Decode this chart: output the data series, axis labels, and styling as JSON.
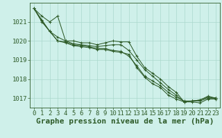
{
  "title": "Graphe pression niveau de la mer (hPa)",
  "xlabel_hours": [
    0,
    1,
    2,
    3,
    4,
    5,
    6,
    7,
    8,
    9,
    10,
    11,
    12,
    13,
    14,
    15,
    16,
    17,
    18,
    19,
    20,
    21,
    22,
    23
  ],
  "ylim": [
    1016.5,
    1022.0
  ],
  "yticks": [
    1017,
    1018,
    1019,
    1020,
    1021
  ],
  "background_color": "#cff0ea",
  "grid_color": "#aad8cc",
  "line_color": "#2d5a27",
  "series": [
    [
      1021.7,
      1021.3,
      1021.0,
      1021.3,
      1020.0,
      1020.0,
      1019.9,
      1019.9,
      1019.8,
      1019.9,
      1020.0,
      1019.95,
      1019.95,
      1019.2,
      1018.6,
      1018.3,
      1018.0,
      1017.6,
      1017.3,
      1016.8,
      1016.85,
      1016.85,
      1017.0,
      1017.0
    ],
    [
      1021.7,
      1021.1,
      1020.5,
      1020.2,
      1020.0,
      1019.85,
      1019.8,
      1019.75,
      1019.7,
      1019.75,
      1019.8,
      1019.8,
      1019.5,
      1019.0,
      1018.5,
      1018.15,
      1017.8,
      1017.45,
      1017.15,
      1016.8,
      1016.85,
      1016.9,
      1017.1,
      1017.0
    ],
    [
      1021.7,
      1021.05,
      1020.5,
      1020.0,
      1019.95,
      1019.8,
      1019.75,
      1019.7,
      1019.6,
      1019.6,
      1019.5,
      1019.45,
      1019.2,
      1018.7,
      1018.15,
      1017.9,
      1017.65,
      1017.3,
      1017.05,
      1016.85,
      1016.85,
      1016.9,
      1017.05,
      1017.0
    ],
    [
      1021.7,
      1021.0,
      1020.5,
      1020.0,
      1019.9,
      1019.75,
      1019.7,
      1019.65,
      1019.55,
      1019.55,
      1019.45,
      1019.4,
      1019.3,
      1018.6,
      1018.1,
      1017.75,
      1017.55,
      1017.15,
      1016.95,
      1016.8,
      1016.8,
      1016.75,
      1016.95,
      1016.95
    ]
  ],
  "title_fontsize": 8,
  "tick_fontsize": 6.5,
  "label_color": "#2d5a27"
}
